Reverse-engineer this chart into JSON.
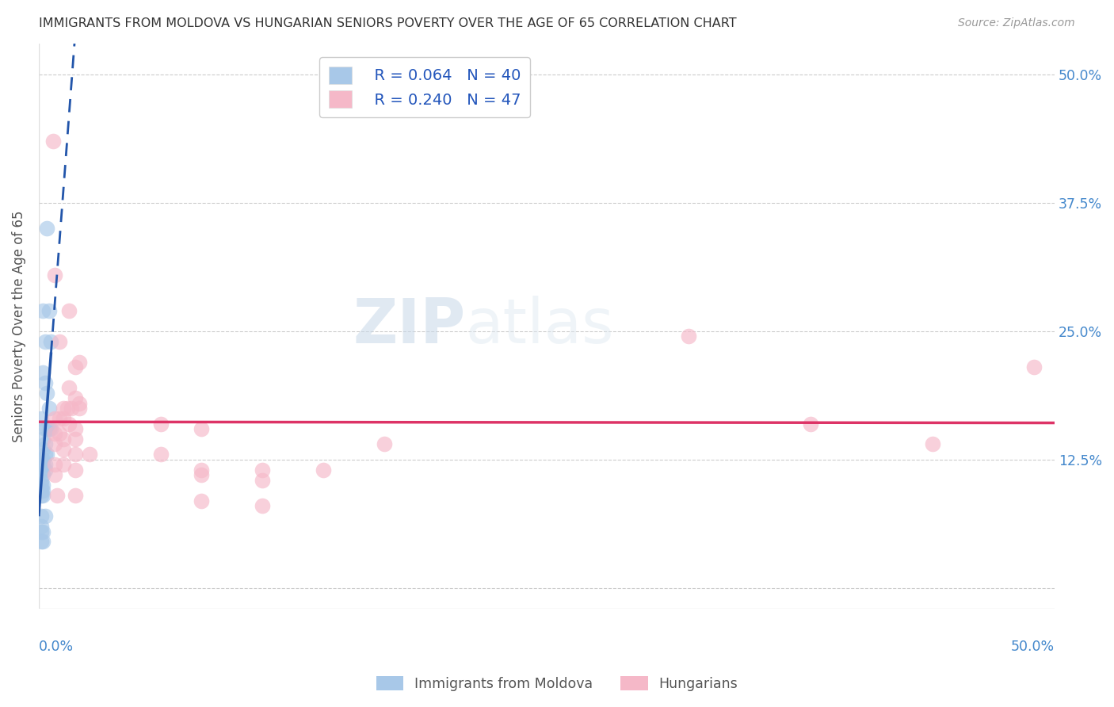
{
  "title": "IMMIGRANTS FROM MOLDOVA VS HUNGARIAN SENIORS POVERTY OVER THE AGE OF 65 CORRELATION CHART",
  "source": "Source: ZipAtlas.com",
  "ylabel": "Seniors Poverty Over the Age of 65",
  "ytick_vals": [
    0.0,
    0.125,
    0.25,
    0.375,
    0.5
  ],
  "ytick_labels": [
    "",
    "12.5%",
    "25.0%",
    "37.5%",
    "50.0%"
  ],
  "xlim": [
    0.0,
    0.5
  ],
  "ylim": [
    -0.02,
    0.53
  ],
  "legend_labels": [
    "Immigrants from Moldova",
    "Hungarians"
  ],
  "legend_R": [
    "R = 0.064",
    "R = 0.240"
  ],
  "legend_N": [
    "N = 40",
    "N = 47"
  ],
  "blue_color": "#a8c8e8",
  "pink_color": "#f5b8c8",
  "blue_line_color": "#2255aa",
  "pink_line_color": "#dd3366",
  "blue_scatter": [
    [
      0.003,
      0.115
    ],
    [
      0.004,
      0.35
    ],
    [
      0.005,
      0.27
    ],
    [
      0.006,
      0.24
    ],
    [
      0.002,
      0.27
    ],
    [
      0.003,
      0.24
    ],
    [
      0.002,
      0.21
    ],
    [
      0.003,
      0.2
    ],
    [
      0.004,
      0.19
    ],
    [
      0.005,
      0.175
    ],
    [
      0.001,
      0.165
    ],
    [
      0.003,
      0.155
    ],
    [
      0.004,
      0.155
    ],
    [
      0.005,
      0.155
    ],
    [
      0.006,
      0.155
    ],
    [
      0.002,
      0.145
    ],
    [
      0.003,
      0.14
    ],
    [
      0.002,
      0.135
    ],
    [
      0.003,
      0.13
    ],
    [
      0.004,
      0.13
    ],
    [
      0.001,
      0.125
    ],
    [
      0.002,
      0.125
    ],
    [
      0.002,
      0.12
    ],
    [
      0.003,
      0.12
    ],
    [
      0.001,
      0.115
    ],
    [
      0.002,
      0.11
    ],
    [
      0.001,
      0.105
    ],
    [
      0.001,
      0.1
    ],
    [
      0.002,
      0.1
    ],
    [
      0.001,
      0.095
    ],
    [
      0.002,
      0.095
    ],
    [
      0.001,
      0.09
    ],
    [
      0.002,
      0.09
    ],
    [
      0.001,
      0.07
    ],
    [
      0.001,
      0.06
    ],
    [
      0.001,
      0.055
    ],
    [
      0.002,
      0.055
    ],
    [
      0.001,
      0.045
    ],
    [
      0.002,
      0.045
    ],
    [
      0.003,
      0.07
    ]
  ],
  "pink_scatter": [
    [
      0.007,
      0.435
    ],
    [
      0.008,
      0.305
    ],
    [
      0.015,
      0.27
    ],
    [
      0.01,
      0.24
    ],
    [
      0.018,
      0.215
    ],
    [
      0.02,
      0.22
    ],
    [
      0.015,
      0.195
    ],
    [
      0.018,
      0.185
    ],
    [
      0.02,
      0.18
    ],
    [
      0.012,
      0.175
    ],
    [
      0.014,
      0.175
    ],
    [
      0.016,
      0.175
    ],
    [
      0.02,
      0.175
    ],
    [
      0.008,
      0.165
    ],
    [
      0.01,
      0.165
    ],
    [
      0.012,
      0.165
    ],
    [
      0.015,
      0.16
    ],
    [
      0.018,
      0.155
    ],
    [
      0.06,
      0.16
    ],
    [
      0.08,
      0.155
    ],
    [
      0.008,
      0.15
    ],
    [
      0.01,
      0.15
    ],
    [
      0.012,
      0.145
    ],
    [
      0.018,
      0.145
    ],
    [
      0.008,
      0.14
    ],
    [
      0.012,
      0.135
    ],
    [
      0.018,
      0.13
    ],
    [
      0.025,
      0.13
    ],
    [
      0.06,
      0.13
    ],
    [
      0.008,
      0.12
    ],
    [
      0.012,
      0.12
    ],
    [
      0.018,
      0.115
    ],
    [
      0.08,
      0.115
    ],
    [
      0.11,
      0.115
    ],
    [
      0.14,
      0.115
    ],
    [
      0.008,
      0.11
    ],
    [
      0.08,
      0.11
    ],
    [
      0.11,
      0.105
    ],
    [
      0.009,
      0.09
    ],
    [
      0.018,
      0.09
    ],
    [
      0.08,
      0.085
    ],
    [
      0.11,
      0.08
    ],
    [
      0.17,
      0.14
    ],
    [
      0.32,
      0.245
    ],
    [
      0.38,
      0.16
    ],
    [
      0.44,
      0.14
    ],
    [
      0.49,
      0.215
    ]
  ],
  "watermark_zip": "ZIP",
  "watermark_atlas": "atlas",
  "background_color": "#ffffff",
  "grid_color": "#cccccc"
}
